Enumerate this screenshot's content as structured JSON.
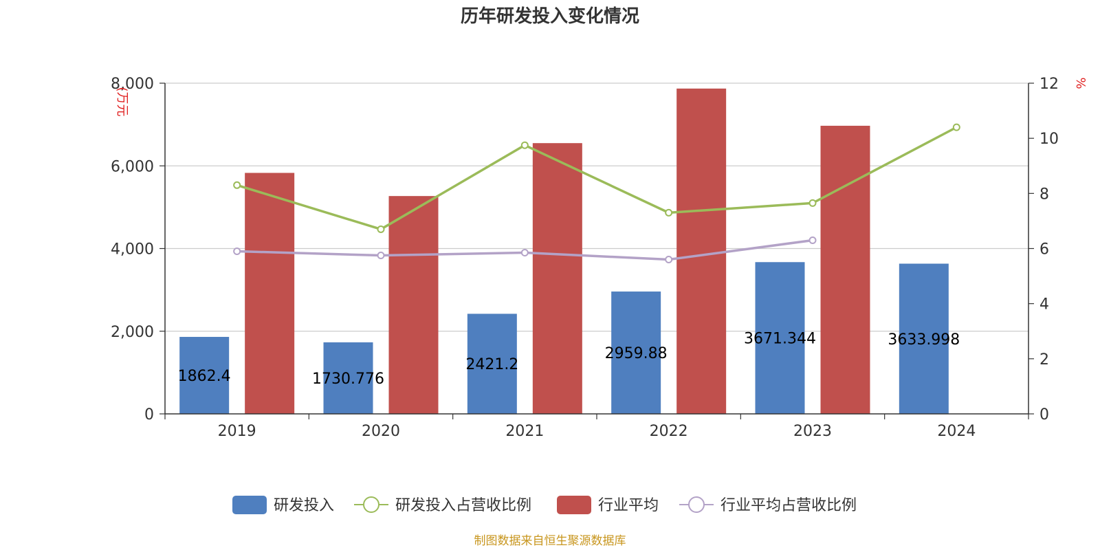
{
  "chart_data": {
    "type": "bar",
    "title": "历年研发投入变化情况",
    "categories": [
      "2019",
      "2020",
      "2021",
      "2022",
      "2023",
      "2024"
    ],
    "y_left": {
      "unit": "(万元",
      "ylim": [
        0,
        8000
      ],
      "ticks": [
        "0",
        "2,000",
        "4,000",
        "6,000",
        "8,000"
      ]
    },
    "y_right": {
      "unit": "%",
      "ylim": [
        0,
        12
      ],
      "ticks": [
        "0",
        "2",
        "4",
        "6",
        "8",
        "10",
        "12"
      ]
    },
    "series": [
      {
        "name": "研发投入",
        "type": "bar",
        "axis": "left",
        "color": "#4f7fbf",
        "values": [
          1862.4,
          1730.776,
          2421.2,
          2959.88,
          3671.344,
          3633.998
        ],
        "labels": [
          "1862.4",
          "1730.776",
          "2421.2",
          "2959.88",
          "3671.344",
          "3633.998"
        ]
      },
      {
        "name": "研发投入占营收比例",
        "type": "line",
        "axis": "right",
        "color": "#9bbb59",
        "values": [
          8.3,
          6.7,
          9.75,
          7.3,
          7.65,
          10.4
        ]
      },
      {
        "name": "行业平均",
        "type": "bar",
        "axis": "left",
        "color": "#c0504d",
        "values": [
          5830,
          5270,
          6550,
          7870,
          6970,
          null
        ]
      },
      {
        "name": "行业平均占营收比例",
        "type": "line",
        "axis": "right",
        "color": "#b3a2c7",
        "values": [
          5.9,
          5.75,
          5.85,
          5.6,
          6.3,
          null
        ]
      }
    ],
    "legend": "bottom-center",
    "grid": true
  },
  "footer": {
    "source": "制图数据来自恒生聚源数据库"
  }
}
